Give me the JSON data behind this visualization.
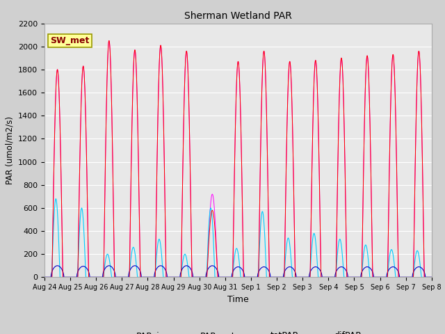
{
  "title": "Sherman Wetland PAR",
  "ylabel": "PAR (umol/m2/s)",
  "xlabel": "Time",
  "legend_label": "SW_met",
  "ylim": [
    0,
    2200
  ],
  "n_days": 15,
  "xtick_labels": [
    "Aug 24",
    "Aug 25",
    "Aug 26",
    "Aug 27",
    "Aug 28",
    "Aug 29",
    "Aug 30",
    "Aug 31",
    "Sep 1",
    "Sep 2",
    "Sep 3",
    "Sep 4",
    "Sep 5",
    "Sep 6",
    "Sep 7",
    "Sep 8"
  ],
  "line_colors": {
    "PAR_in": "#ff0000",
    "PAR_out": "#0000cc",
    "totPAR": "#ff00ff",
    "difPAR": "#00ccff"
  },
  "par_in_peaks": [
    1800,
    1830,
    2050,
    1970,
    2010,
    1960,
    580,
    1870,
    1960,
    1870,
    1880,
    1900,
    1920,
    1930,
    1960
  ],
  "par_out_peaks": [
    100,
    95,
    100,
    100,
    100,
    100,
    100,
    90,
    90,
    90,
    90,
    90,
    90,
    90,
    90
  ],
  "tot_par_peaks": [
    1800,
    1830,
    2050,
    1970,
    2010,
    1960,
    720,
    1870,
    1960,
    1870,
    1880,
    1900,
    1920,
    1930,
    1960
  ],
  "dif_peaks": [
    680,
    600,
    200,
    260,
    330,
    200,
    600,
    250,
    570,
    340,
    380,
    330,
    280,
    240,
    230
  ],
  "fig_bg": "#d0d0d0",
  "ax_bg": "#e8e8e8",
  "grid_color": "#ffffff",
  "legend_box_facecolor": "#ffff99",
  "legend_box_edgecolor": "#999900",
  "legend_text_color": "#880000"
}
